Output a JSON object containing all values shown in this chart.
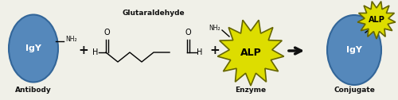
{
  "bg_color": "#f0f0e8",
  "ellipse_color": "#5588bb",
  "ellipse_edge_color": "#336699",
  "star_color": "#dddd00",
  "star_edge_color": "#666600",
  "arrow_color": "#111111",
  "text_color": "#111111",
  "label_antibody": "Antibody",
  "label_enzyme": "Enzyme",
  "label_conjugate": "Conjugate",
  "label_igy": "IgY",
  "label_alp": "ALP",
  "label_glut": "Glutaraldehyde",
  "label_nh2": "NH₂",
  "label_plus": "+"
}
